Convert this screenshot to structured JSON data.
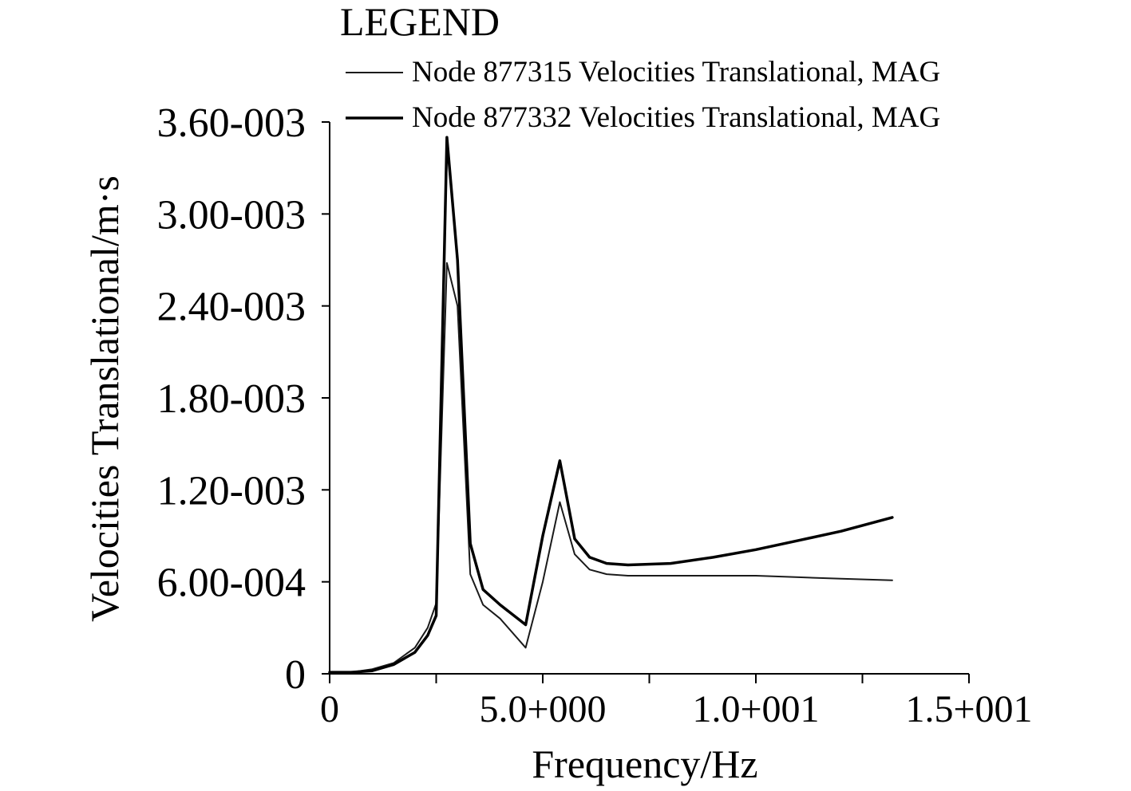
{
  "chart_data": {
    "type": "line",
    "xlabel": "Frequency/Hz",
    "ylabel": "Velocities Translational/m·s",
    "xlim": [
      0,
      15
    ],
    "ylim": [
      0,
      0.0036
    ],
    "x_tick_values": [
      0,
      5,
      10,
      15
    ],
    "x_tick_labels": [
      "0",
      "5.0+000",
      "1.0+001",
      "1.5+001"
    ],
    "x_minor_tick_values": [
      2.5,
      7.5,
      12.5
    ],
    "y_tick_values": [
      0,
      0.0006,
      0.0012,
      0.0018,
      0.0024,
      0.003,
      0.0036
    ],
    "y_tick_labels": [
      "0",
      "6.00-004",
      "1.20-003",
      "1.80-003",
      "2.40-003",
      "3.00-003",
      "3.60-003"
    ],
    "grid": false,
    "legend": {
      "title": "LEGEND",
      "placement": "top-right",
      "entries": [
        "Node 877315 Velocities Translational, MAG",
        "Node 877332 Velocities Translational, MAG"
      ]
    },
    "series": [
      {
        "name": "Node 877315 Velocities Translational, MAG",
        "color": "#1a1a1a",
        "x": [
          0,
          0.5,
          1.0,
          1.5,
          2.0,
          2.3,
          2.5,
          2.75,
          3.0,
          3.3,
          3.6,
          4.0,
          4.6,
          5.0,
          5.4,
          5.75,
          6.1,
          6.5,
          7.0,
          8.0,
          9.0,
          10.0,
          11.0,
          12.0,
          13.2
        ],
        "y": [
          1e-05,
          1e-05,
          3e-05,
          7e-05,
          0.00017,
          0.0003,
          0.00046,
          0.00268,
          0.0024,
          0.00065,
          0.00045,
          0.00036,
          0.00017,
          0.0006,
          0.00112,
          0.00078,
          0.00068,
          0.00065,
          0.00064,
          0.00064,
          0.00064,
          0.00064,
          0.00063,
          0.00062,
          0.00061
        ]
      },
      {
        "name": "Node 877332 Velocities Translational, MAG",
        "color": "#000000",
        "x": [
          0,
          0.5,
          1.0,
          1.5,
          2.0,
          2.3,
          2.5,
          2.75,
          3.0,
          3.3,
          3.6,
          4.0,
          4.6,
          5.0,
          5.4,
          5.75,
          6.1,
          6.5,
          7.0,
          8.0,
          9.0,
          10.0,
          11.0,
          12.0,
          13.2
        ],
        "y": [
          1e-05,
          1e-05,
          2e-05,
          6e-05,
          0.00014,
          0.00025,
          0.00038,
          0.0035,
          0.0027,
          0.00085,
          0.00055,
          0.00045,
          0.00032,
          0.0009,
          0.00139,
          0.00088,
          0.00076,
          0.00072,
          0.00071,
          0.00072,
          0.00076,
          0.00081,
          0.00087,
          0.00093,
          0.00102
        ]
      }
    ]
  }
}
